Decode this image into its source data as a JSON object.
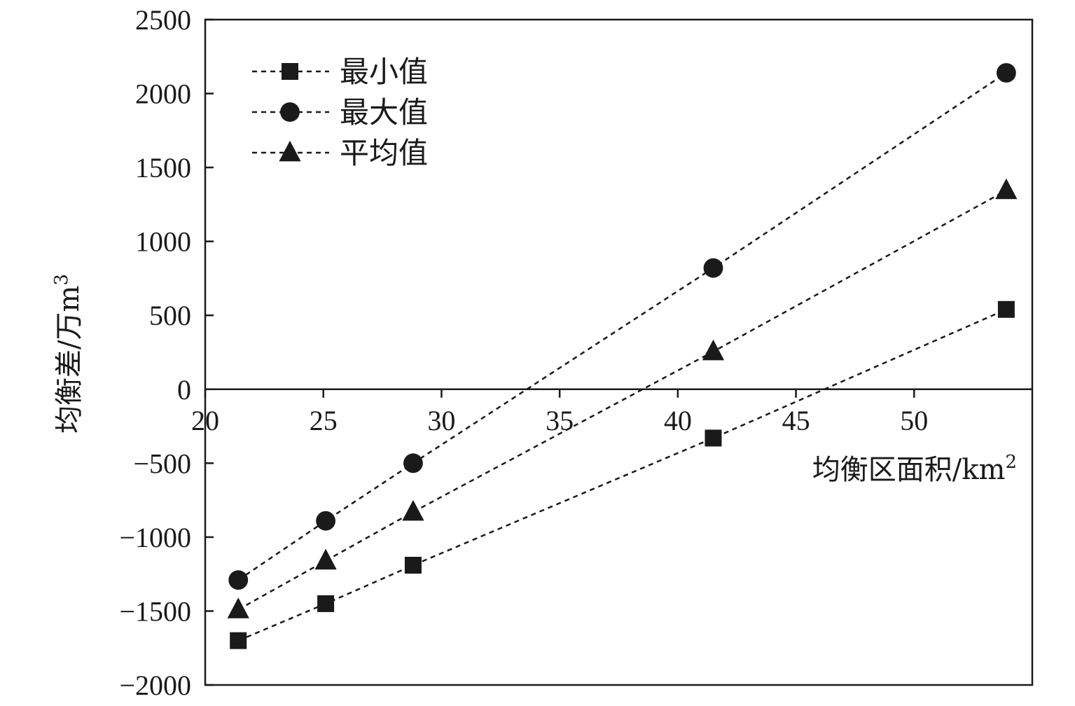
{
  "chart_data": {
    "type": "line",
    "title": "",
    "xlabel": "均衡区面积/km",
    "xlabel_sup": "2",
    "ylabel": "均衡差/万m",
    "ylabel_sup": "3",
    "xlim": [
      20,
      55
    ],
    "ylim": [
      -2000,
      2500
    ],
    "xticks": [
      20,
      25,
      30,
      35,
      40,
      45,
      50
    ],
    "yticks": [
      -2000,
      -1500,
      -1000,
      -500,
      0,
      500,
      1000,
      1500,
      2000,
      2500
    ],
    "ytick_labels": [
      "−2000",
      "−1500",
      "−1000",
      "−500",
      "0",
      "500",
      "1000",
      "1500",
      "2000",
      "2500"
    ],
    "grid": false,
    "legend_position": "top-left",
    "line_style": "dotted",
    "color": "#1a1a1a",
    "series": [
      {
        "name": "最小值",
        "marker": "square",
        "x": [
          21.4,
          25.1,
          28.8,
          41.5,
          53.9
        ],
        "y": [
          -1700,
          -1450,
          -1190,
          -330,
          540
        ]
      },
      {
        "name": "最大值",
        "marker": "circle",
        "x": [
          21.4,
          25.1,
          28.8,
          41.5,
          53.9
        ],
        "y": [
          -1290,
          -890,
          -500,
          820,
          2140
        ]
      },
      {
        "name": "平均值",
        "marker": "triangle",
        "x": [
          21.4,
          25.1,
          28.8,
          41.5,
          53.9
        ],
        "y": [
          -1490,
          -1160,
          -830,
          255,
          1345
        ]
      }
    ]
  }
}
